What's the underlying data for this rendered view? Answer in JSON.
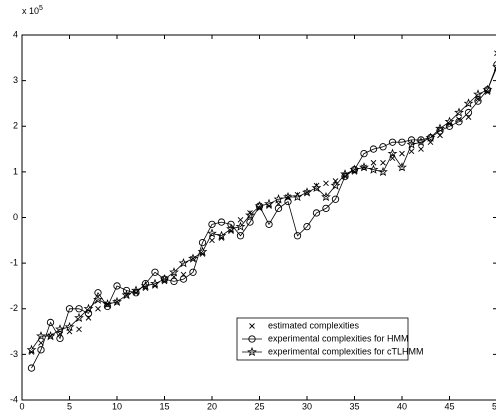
{
  "chart_data": {
    "type": "line",
    "y_multiplier": {
      "base": "x 10",
      "exponent": "5"
    },
    "x": [
      1,
      2,
      3,
      4,
      5,
      6,
      7,
      8,
      9,
      10,
      11,
      12,
      13,
      14,
      15,
      16,
      17,
      18,
      19,
      20,
      21,
      22,
      23,
      24,
      25,
      26,
      27,
      28,
      29,
      30,
      31,
      32,
      33,
      34,
      35,
      36,
      37,
      38,
      39,
      40,
      41,
      42,
      43,
      44,
      45,
      46,
      47,
      48,
      49,
      50
    ],
    "xlim": [
      0,
      50
    ],
    "xticks": [
      0,
      5,
      10,
      15,
      20,
      25,
      30,
      35,
      40,
      45,
      50
    ],
    "ylim": [
      -4,
      4
    ],
    "yticks": [
      -4,
      -3,
      -2,
      -1,
      0,
      1,
      2,
      3,
      4
    ],
    "legend_position": "lower right",
    "series": [
      {
        "name": "estimated complexities",
        "color": "#000000",
        "marker": "x",
        "line": false,
        "values": [
          -2.95,
          -2.75,
          -2.6,
          -2.55,
          -2.5,
          -2.45,
          -2.2,
          -2.0,
          -1.9,
          -1.85,
          -1.7,
          -1.65,
          -1.55,
          -1.5,
          -1.4,
          -1.3,
          -1.25,
          -0.9,
          -0.8,
          -0.5,
          -0.45,
          -0.3,
          -0.05,
          0.1,
          0.2,
          0.25,
          0.3,
          0.45,
          0.5,
          0.55,
          0.7,
          0.75,
          0.8,
          0.9,
          1.0,
          1.1,
          1.2,
          1.2,
          1.3,
          1.4,
          1.45,
          1.5,
          1.65,
          1.8,
          2.05,
          2.15,
          2.2,
          2.6,
          2.75,
          3.6
        ]
      },
      {
        "name": "experimental complexities for HMM",
        "color": "#000000",
        "marker": "circle",
        "line": true,
        "values": [
          -3.3,
          -2.9,
          -2.3,
          -2.65,
          -2.0,
          -2.0,
          -2.1,
          -1.65,
          -1.95,
          -1.5,
          -1.6,
          -1.65,
          -1.45,
          -1.2,
          -1.35,
          -1.4,
          -1.35,
          -1.2,
          -0.55,
          -0.15,
          -0.1,
          -0.15,
          -0.4,
          -0.1,
          0.25,
          -0.15,
          0.2,
          0.35,
          -0.4,
          -0.2,
          0.1,
          0.2,
          0.4,
          0.9,
          1.05,
          1.4,
          1.5,
          1.55,
          1.65,
          1.65,
          1.7,
          1.7,
          1.75,
          1.9,
          2.0,
          2.1,
          2.3,
          2.55,
          2.8,
          3.35
        ]
      },
      {
        "name": "experimental complexities for cTLHMM",
        "color": "#000000",
        "marker": "star",
        "line": true,
        "values": [
          -2.9,
          -2.6,
          -2.6,
          -2.45,
          -2.4,
          -2.2,
          -2.0,
          -1.8,
          -1.9,
          -1.85,
          -1.7,
          -1.6,
          -1.5,
          -1.45,
          -1.35,
          -1.2,
          -1.0,
          -0.9,
          -0.75,
          -0.35,
          -0.4,
          -0.25,
          -0.2,
          0.05,
          0.25,
          0.3,
          0.4,
          0.45,
          0.45,
          0.55,
          0.65,
          0.45,
          0.7,
          0.95,
          1.05,
          1.1,
          1.05,
          1.0,
          1.4,
          1.1,
          1.6,
          1.65,
          1.75,
          1.95,
          2.1,
          2.3,
          2.5,
          2.7,
          2.8,
          3.3
        ]
      }
    ]
  }
}
